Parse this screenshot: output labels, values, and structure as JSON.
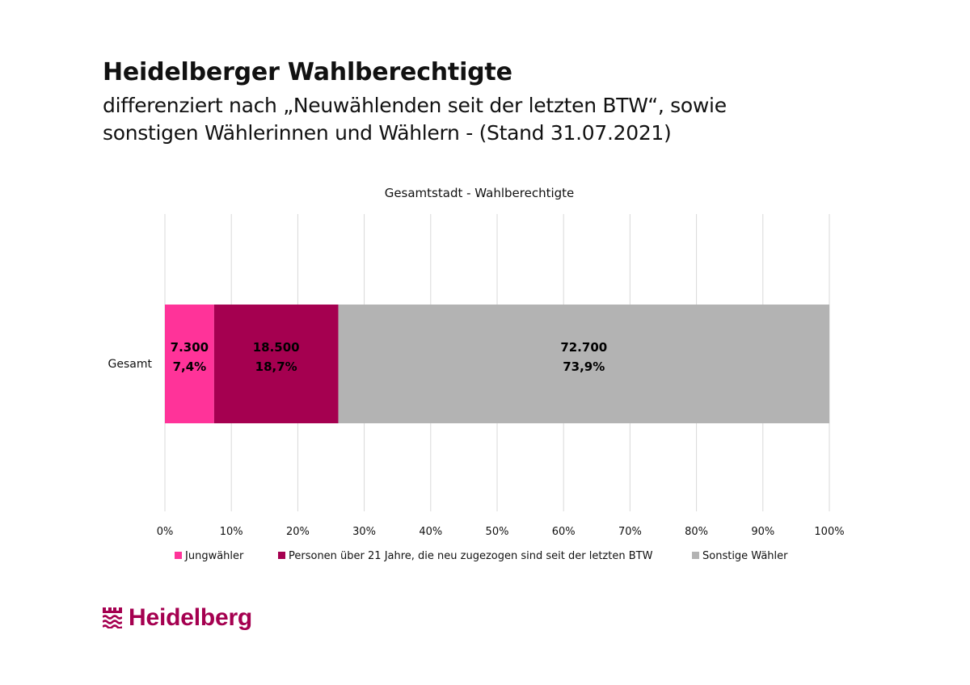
{
  "header": {
    "title": "Heidelberger Wahlberechtigte",
    "subtitle_line1": "differenziert nach „Neuwählenden seit der letzten BTW“, sowie",
    "subtitle_line2": "sonstigen Wählerinnen und Wählern - (Stand 31.07.2021)"
  },
  "logo": {
    "text": "Heidelberg",
    "icon": "heidelberg-logo-icon",
    "color": "#a50050"
  },
  "chart_data": {
    "type": "bar",
    "orientation": "horizontal",
    "stacking": "percent",
    "title": "Gesamtstadt - Wahlberechtigte",
    "categories": [
      "Gesamt"
    ],
    "xlim": [
      0,
      100
    ],
    "x_ticks": [
      "0%",
      "10%",
      "20%",
      "30%",
      "40%",
      "50%",
      "60%",
      "70%",
      "80%",
      "90%",
      "100%"
    ],
    "grid": true,
    "legend_position": "bottom",
    "series": [
      {
        "name": "Jungwähler",
        "values": [
          7.4
        ],
        "count_label": "7.300",
        "percent_label": "7,4%",
        "color": "#ff3399"
      },
      {
        "name": "Personen über 21 Jahre, die neu zugezogen sind seit der letzten BTW",
        "values": [
          18.7
        ],
        "count_label": "18.500",
        "percent_label": "18,7%",
        "color": "#a50050"
      },
      {
        "name": "Sonstige Wähler",
        "values": [
          73.9
        ],
        "count_label": "72.700",
        "percent_label": "73,9%",
        "color": "#b3b3b3"
      }
    ]
  }
}
